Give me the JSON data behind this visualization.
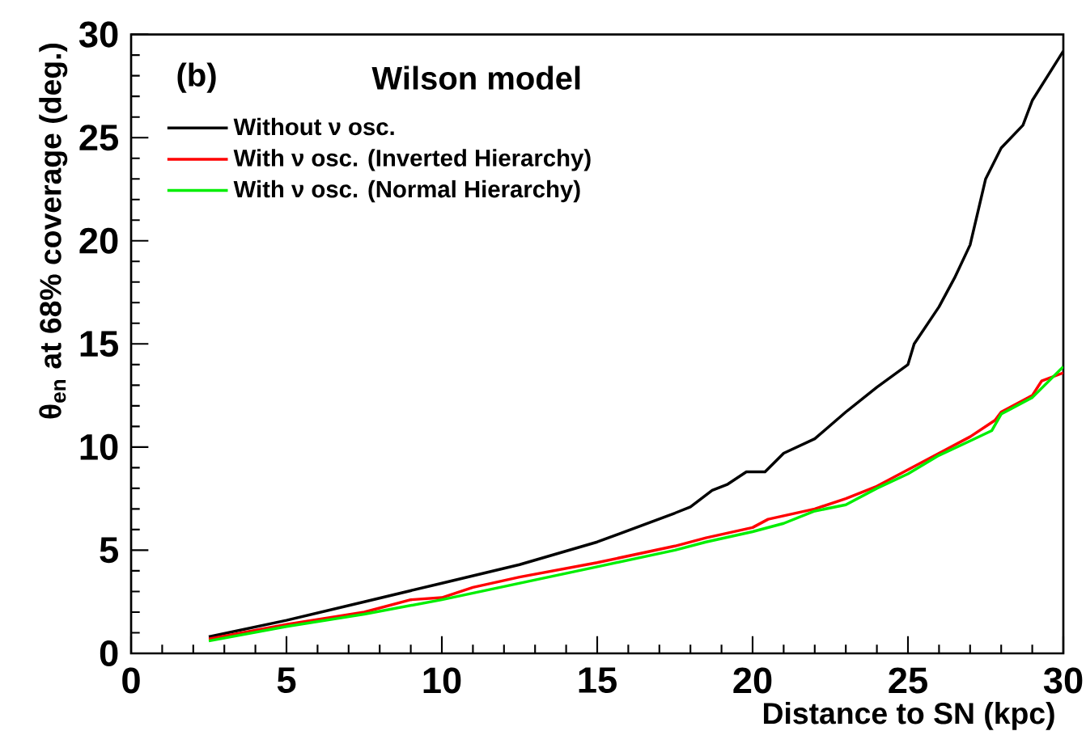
{
  "chart_data": {
    "type": "line",
    "xlabel": "Distance to SN (kpc)",
    "ylabel": "θ$_{en}$ at 68% coverage (deg.)",
    "annotations": [
      "(b)",
      "Wilson model"
    ],
    "xlim": [
      0,
      30
    ],
    "ylim": [
      0,
      30
    ],
    "xticks": [
      0,
      5,
      10,
      15,
      20,
      25,
      30
    ],
    "yticks": [
      0,
      5,
      10,
      15,
      20,
      25,
      30
    ],
    "legend": "top left",
    "grid": false,
    "marker": "none",
    "line_style": "solid",
    "series": [
      {
        "name": "Without ν osc.",
        "color": "#000000",
        "x": [
          2.5,
          5,
          7.5,
          10,
          12.5,
          15,
          17.5,
          18,
          18.7,
          19.2,
          19.8,
          20.4,
          21,
          22,
          23,
          24,
          25,
          25.2,
          26,
          26.5,
          27,
          27.5,
          28,
          28.7,
          29,
          29.5,
          30
        ],
        "values": [
          0.8,
          1.6,
          2.5,
          3.4,
          4.3,
          5.4,
          6.8,
          7.1,
          7.9,
          8.2,
          8.8,
          8.8,
          9.7,
          10.4,
          11.7,
          12.9,
          14.0,
          15.0,
          16.8,
          18.2,
          19.8,
          23.0,
          24.5,
          25.6,
          26.8,
          28.0,
          29.2
        ]
      },
      {
        "name": "With ν osc. (Inverted Hierarchy)",
        "color": "#ff0000",
        "x": [
          2.5,
          5,
          7.5,
          9,
          10,
          11,
          12.5,
          15,
          17.5,
          18.5,
          20,
          20.5,
          22,
          23,
          24,
          25,
          26,
          27,
          27.8,
          28,
          29,
          29.3,
          30
        ],
        "values": [
          0.7,
          1.4,
          2.0,
          2.6,
          2.7,
          3.2,
          3.7,
          4.4,
          5.2,
          5.6,
          6.1,
          6.5,
          7.0,
          7.5,
          8.1,
          8.9,
          9.7,
          10.5,
          11.3,
          11.7,
          12.5,
          13.2,
          13.6
        ]
      },
      {
        "name": "With ν osc. (Normal Hierarchy)",
        "color": "#00ee00",
        "x": [
          2.5,
          5,
          7.5,
          10,
          12.5,
          15,
          17.5,
          18.5,
          20,
          21,
          22,
          23,
          24,
          25,
          26,
          27,
          27.7,
          28,
          29,
          30
        ],
        "values": [
          0.6,
          1.3,
          1.9,
          2.6,
          3.4,
          4.2,
          5.0,
          5.4,
          5.9,
          6.3,
          6.9,
          7.2,
          8.0,
          8.7,
          9.6,
          10.3,
          10.8,
          11.6,
          12.4,
          13.9
        ]
      }
    ]
  }
}
